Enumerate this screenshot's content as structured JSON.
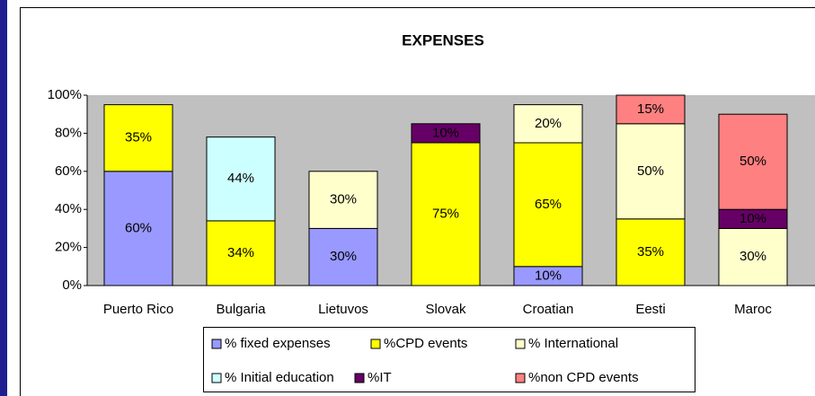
{
  "chart_data": {
    "type": "stacked_bar",
    "title": "EXPENSES",
    "categories": [
      "Puerto Rico",
      "Bulgaria",
      "Lietuvos",
      "Slovak",
      "Croatian",
      "Eesti",
      "Maroc"
    ],
    "series": [
      {
        "name": "% fixed expenses",
        "color": "#9999ff",
        "values": [
          60,
          null,
          30,
          null,
          10,
          null,
          null
        ],
        "value_labels": [
          "60%",
          null,
          "30%",
          null,
          "10%",
          null,
          null
        ]
      },
      {
        "name": "%CPD events",
        "color": "#ffff00",
        "values": [
          35,
          34,
          null,
          75,
          65,
          35,
          null
        ],
        "value_labels": [
          "35%",
          "34%",
          null,
          "75%",
          "65%",
          "35%",
          null
        ]
      },
      {
        "name": "% International",
        "color": "#ffffcc",
        "values": [
          null,
          null,
          30,
          null,
          20,
          50,
          30
        ],
        "value_labels": [
          null,
          null,
          "30%",
          null,
          "20%",
          "50%",
          "30%"
        ]
      },
      {
        "name": "% Initial education",
        "color": "#ccffff",
        "values": [
          null,
          44,
          null,
          null,
          null,
          null,
          null
        ],
        "value_labels": [
          null,
          "44%",
          null,
          null,
          null,
          null,
          null
        ]
      },
      {
        "name": "%IT",
        "color": "#660066",
        "values": [
          null,
          null,
          null,
          10,
          null,
          null,
          10
        ],
        "value_labels": [
          null,
          null,
          null,
          "10%",
          null,
          null,
          "10%"
        ]
      },
      {
        "name": "%non CPD events",
        "color": "#ff8080",
        "values": [
          null,
          null,
          null,
          null,
          null,
          15,
          50
        ],
        "value_labels": [
          null,
          null,
          null,
          null,
          null,
          "15%",
          "50%"
        ]
      }
    ],
    "ylim": [
      0,
      100
    ],
    "yticks": [
      {
        "value": 0,
        "label": "0%"
      },
      {
        "value": 20,
        "label": "20%"
      },
      {
        "value": 40,
        "label": "40%"
      },
      {
        "value": 60,
        "label": "60%"
      },
      {
        "value": 80,
        "label": "80%"
      },
      {
        "value": 100,
        "label": "100%"
      }
    ],
    "grid": false,
    "plot_background": "#c0c0c0",
    "legend": "bottom"
  }
}
